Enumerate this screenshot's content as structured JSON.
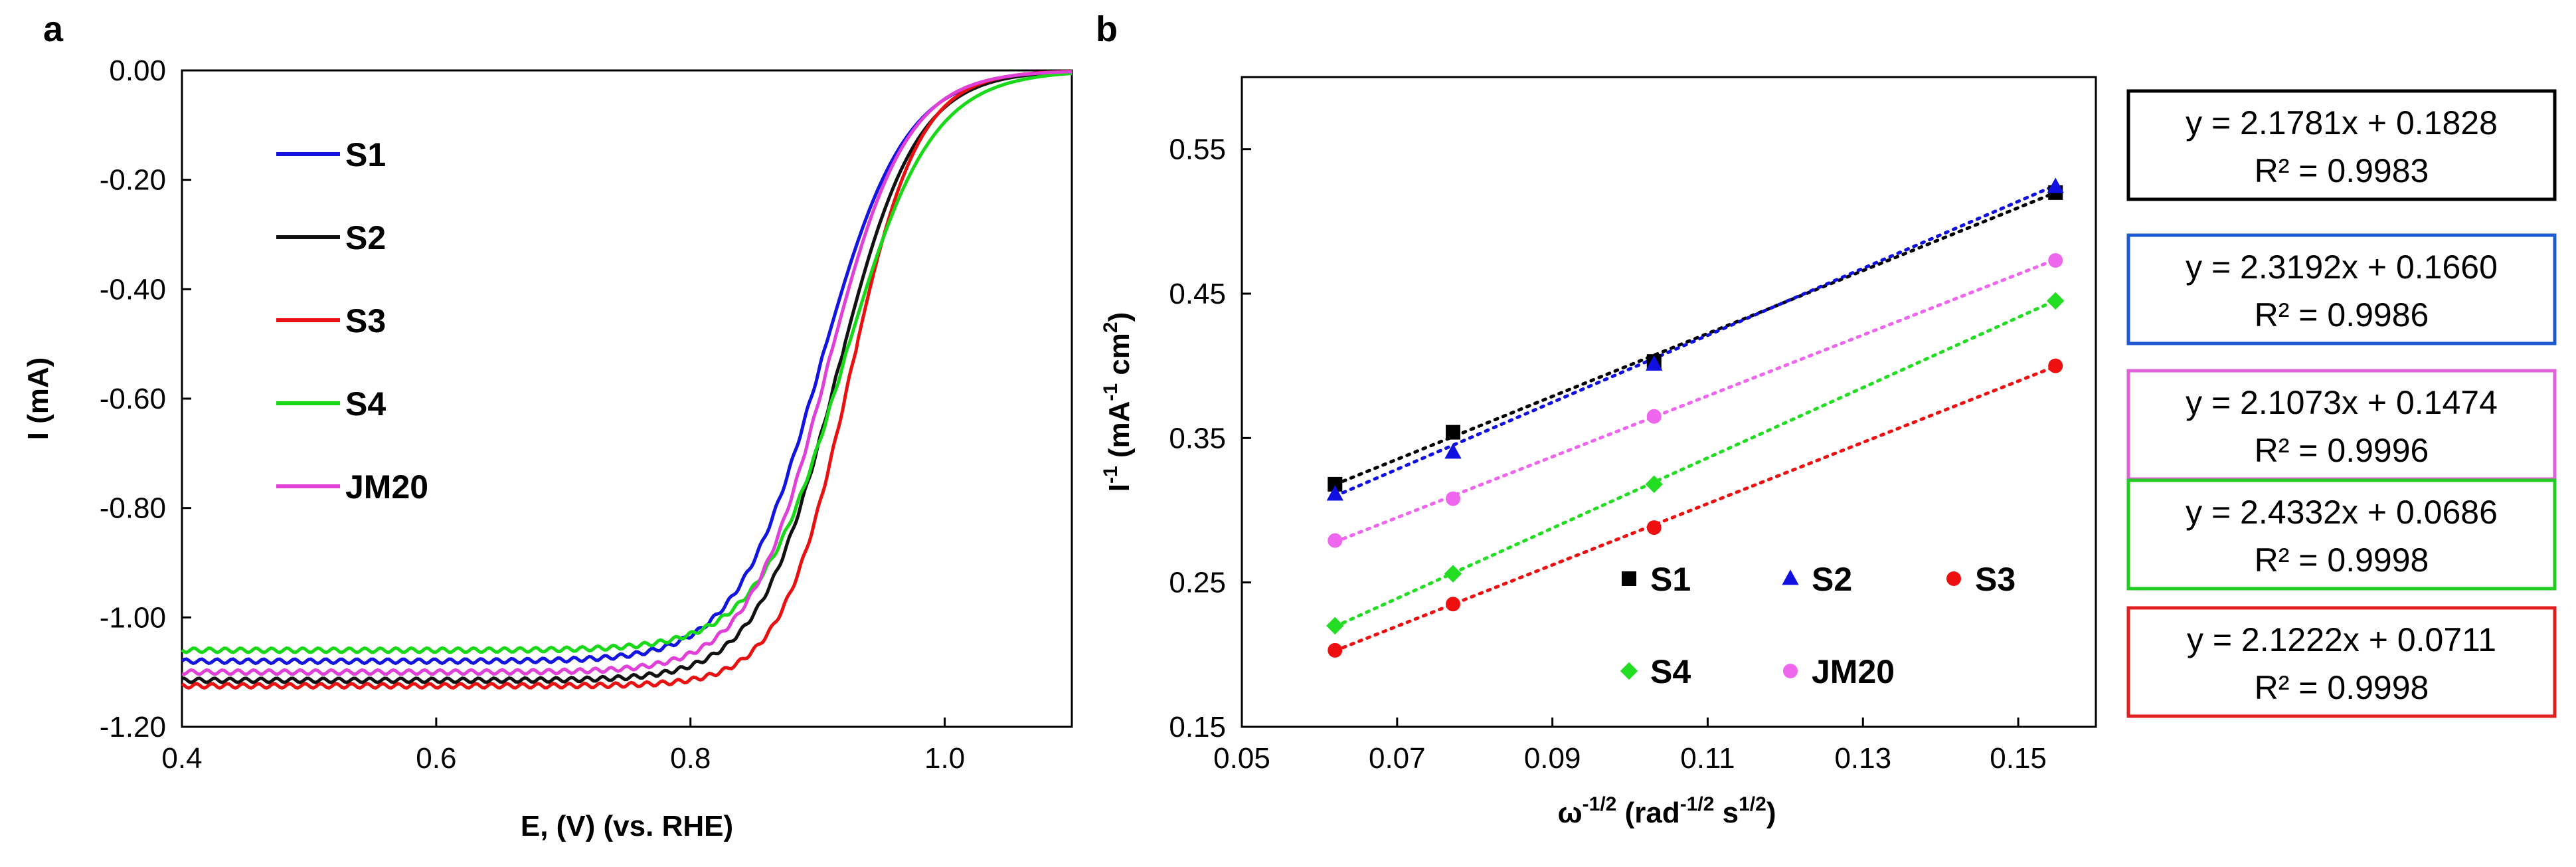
{
  "chart_data": [
    {
      "type": "line",
      "panel_label": "a",
      "xlabel": "E, (V) (vs. RHE)",
      "ylabel": "I (mA)",
      "xlim": [
        0.4,
        1.1
      ],
      "ylim": [
        -1.2,
        0.0
      ],
      "xticks": [
        "0.4",
        "0.6",
        "0.8",
        "1.0"
      ],
      "xtick_values": [
        0.4,
        0.6,
        0.8,
        1.0
      ],
      "yticks": [
        "0.00",
        "-0.20",
        "-0.40",
        "-0.60",
        "-0.80",
        "-1.00",
        "-1.20"
      ],
      "ytick_values": [
        0.0,
        -0.2,
        -0.4,
        -0.6,
        -0.8,
        -1.0,
        -1.2
      ],
      "legend_position": "top-left",
      "series": [
        {
          "name": "S1",
          "color": "#1414e0",
          "limit": -1.08,
          "e_half": 0.902,
          "k": 0.033
        },
        {
          "name": "S2",
          "color": "#111111",
          "limit": -1.115,
          "e_half": 0.915,
          "k": 0.031
        },
        {
          "name": "S3",
          "color": "#e81010",
          "limit": -1.125,
          "e_half": 0.925,
          "k": 0.027
        },
        {
          "name": "S4",
          "color": "#18d818",
          "limit": -1.06,
          "e_half": 0.921,
          "k": 0.034
        },
        {
          "name": "JM20",
          "color": "#e040d8",
          "limit": -1.1,
          "e_half": 0.907,
          "k": 0.031
        }
      ]
    },
    {
      "type": "scatter",
      "panel_label": "b",
      "xlabel_main": "ω",
      "xlabel_sup1": "-1/2",
      "xlabel_mid": " (rad",
      "xlabel_sup2": "-1/2",
      "xlabel_mid2": " s",
      "xlabel_sup3": "1/2",
      "xlabel_end": ")",
      "ylabel_main": "I",
      "ylabel_sup1": "-1",
      "ylabel_mid": " (mA",
      "ylabel_sup2": "-1",
      "ylabel_mid2": " cm",
      "ylabel_sup3": "2",
      "ylabel_end": ")",
      "xlim": [
        0.05,
        0.16
      ],
      "ylim": [
        0.15,
        0.6
      ],
      "xticks": [
        "0.05",
        "0.07",
        "0.09",
        "0.11",
        "0.13",
        "0.15"
      ],
      "xtick_values": [
        0.05,
        0.07,
        0.09,
        0.11,
        0.13,
        0.15
      ],
      "yticks": [
        "0.55",
        "0.45",
        "0.35",
        "0.25",
        "0.15"
      ],
      "ytick_values": [
        0.55,
        0.45,
        0.35,
        0.25,
        0.15
      ],
      "x": [
        0.062,
        0.0772,
        0.1031,
        0.1548
      ],
      "legend_position": "bottom-right",
      "series": [
        {
          "name": "S1",
          "color": "#000000",
          "marker": "square",
          "slope": 2.1781,
          "intercept": 0.1828,
          "values": [
            0.318,
            0.354,
            0.403,
            0.52
          ],
          "equation": "y = 2.1781x + 0.1828",
          "r2": "R² = 0.9983",
          "box_color": "#000000"
        },
        {
          "name": "S2",
          "color": "#1010e0",
          "marker": "triangle",
          "slope": 2.3192,
          "intercept": 0.166,
          "values": [
            0.311,
            0.34,
            0.401,
            0.524
          ],
          "equation": "y = 2.3192x + 0.1660",
          "r2": "R² = 0.9986",
          "box_color": "#1f5bd0"
        },
        {
          "name": "S3",
          "color": "#ee1010",
          "marker": "circle",
          "slope": 2.1222,
          "intercept": 0.0711,
          "values": [
            0.203,
            0.235,
            0.288,
            0.4
          ],
          "equation": "y = 2.1222x + 0.0711",
          "r2": "R² = 0.9998",
          "box_color": "#e02020"
        },
        {
          "name": "S4",
          "color": "#22dd22",
          "marker": "diamond",
          "slope": 2.4332,
          "intercept": 0.0686,
          "values": [
            0.22,
            0.256,
            0.318,
            0.445
          ],
          "equation": "y = 2.4332x + 0.0686",
          "r2": "R² = 0.9998",
          "box_color": "#22cc22"
        },
        {
          "name": "JM20",
          "color": "#ee66ee",
          "marker": "circle",
          "slope": 2.1073,
          "intercept": 0.1474,
          "values": [
            0.279,
            0.308,
            0.365,
            0.473
          ],
          "equation": "y = 2.1073x + 0.1474",
          "r2": "R² = 0.9996",
          "box_color": "#e060d8"
        }
      ]
    }
  ]
}
